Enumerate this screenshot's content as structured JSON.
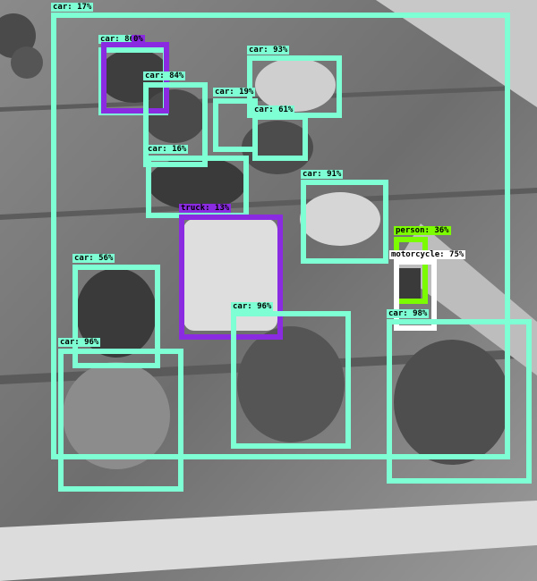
{
  "colors": {
    "car": "#7fffd4",
    "truck": "#8a2be2",
    "person": "#7cfc00",
    "motorcycle": "#ffffff"
  },
  "detections": [
    {
      "cls": "car",
      "label": "car: 17%"
    },
    {
      "cls": "car",
      "label": "car: 86%"
    },
    {
      "cls": "truck",
      "label": "0%"
    },
    {
      "cls": "car",
      "label": "car: 84%"
    },
    {
      "cls": "car",
      "label": "car: 93%"
    },
    {
      "cls": "car",
      "label": "car: 19%"
    },
    {
      "cls": "car",
      "label": "car: 61%"
    },
    {
      "cls": "car",
      "label": "car: 16%"
    },
    {
      "cls": "car",
      "label": "car: 91%"
    },
    {
      "cls": "truck",
      "label": "truck: 13%"
    },
    {
      "cls": "person",
      "label": "person: 36%"
    },
    {
      "cls": "motorcycle",
      "label": "motorcycle: 75%"
    },
    {
      "cls": "car",
      "label": "car: 56%"
    },
    {
      "cls": "car",
      "label": "car: 96%"
    },
    {
      "cls": "car",
      "label": "car: 96%"
    },
    {
      "cls": "car",
      "label": "car: 98%"
    }
  ]
}
